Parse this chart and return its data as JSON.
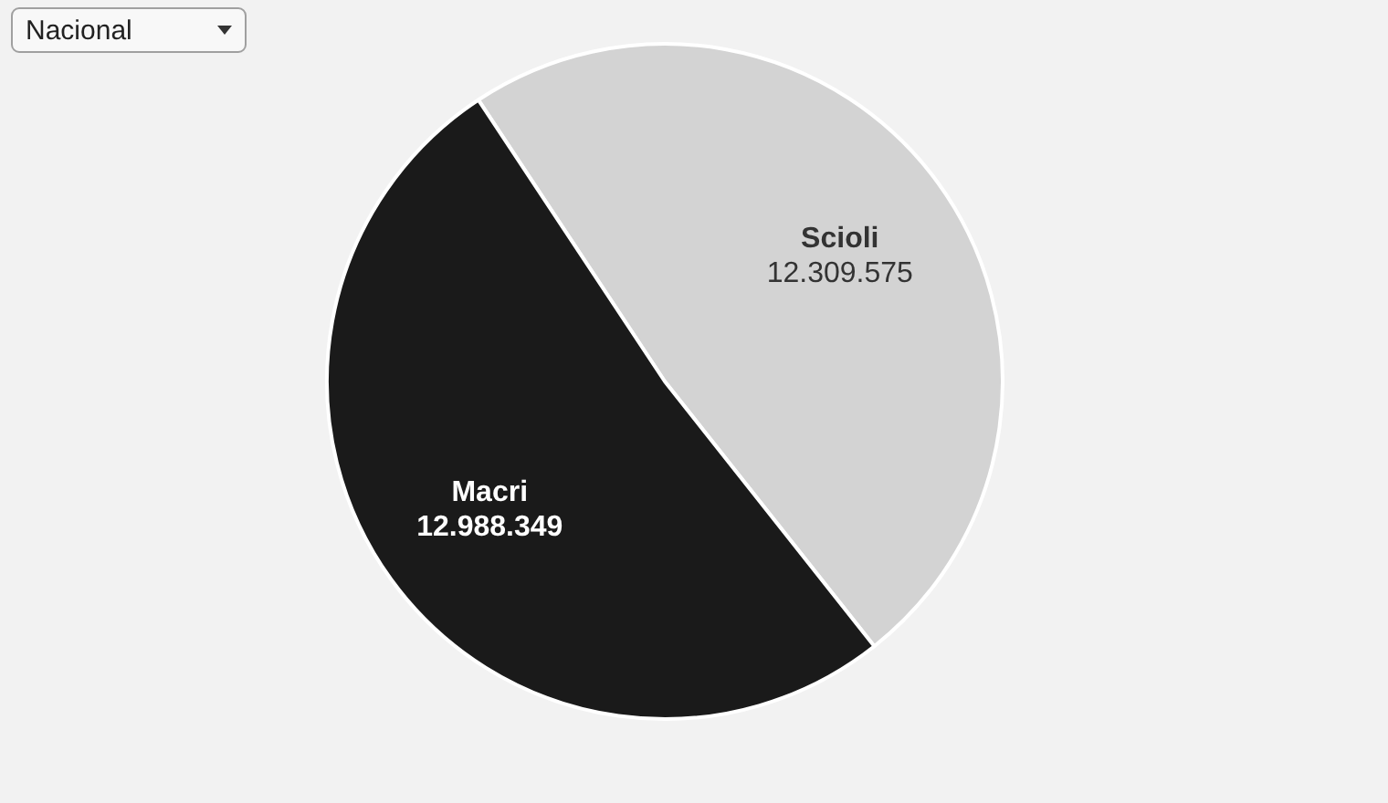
{
  "chart_data": {
    "type": "pie",
    "categories": [
      "Scioli",
      "Macri"
    ],
    "values": [
      12309575,
      12988349
    ],
    "colors": [
      "#d3d3d3",
      "#1a1a1a"
    ],
    "value_labels": [
      "12.309.575",
      "12.988.349"
    ],
    "annotations": [
      "Nacional"
    ]
  }
}
